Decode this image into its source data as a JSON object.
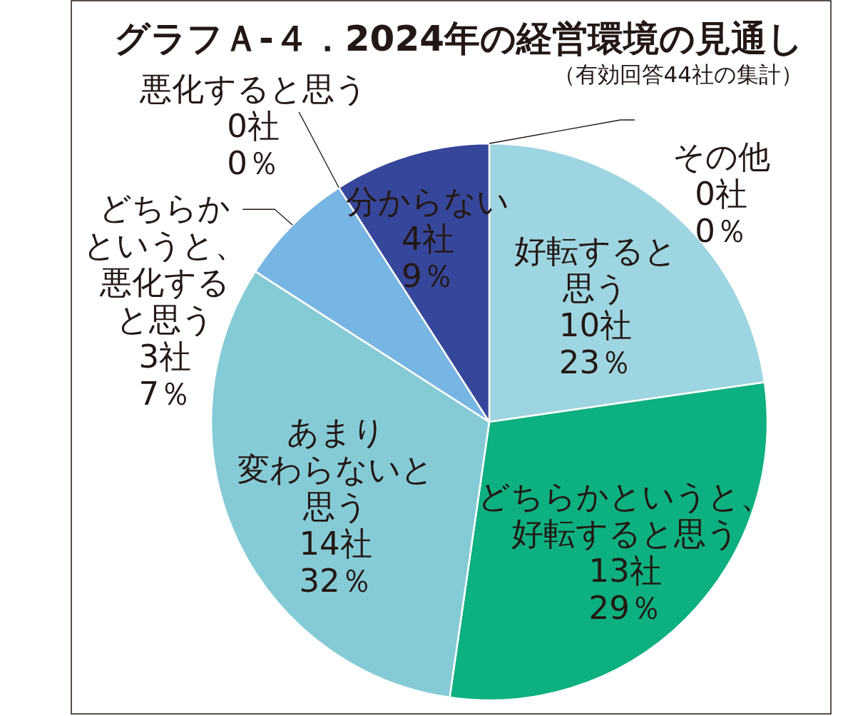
{
  "chart_data": {
    "type": "pie",
    "title": "グラフＡ-４．2024年の経営環境の見通し",
    "subtitle": "（有効回答44社の集計）",
    "categories": [
      "好転すると思う",
      "どちらかというと、好転すると思う",
      "あまり変わらないと思う",
      "どちらかというと、悪化すると思う",
      "悪化すると思う",
      "分からない",
      "その他"
    ],
    "values": [
      10,
      13,
      14,
      3,
      0,
      4,
      0
    ],
    "value_labels": [
      "10社\n23％",
      "13社\n29％",
      "14社\n32％",
      "3社\n7％",
      "0社\n0％",
      "4社\n9％",
      "0社\n0％"
    ],
    "colors": [
      "#9dd5e0",
      "#0db080",
      "#85cbd6",
      "#77b5e3",
      null,
      "#36469a",
      null
    ]
  }
}
